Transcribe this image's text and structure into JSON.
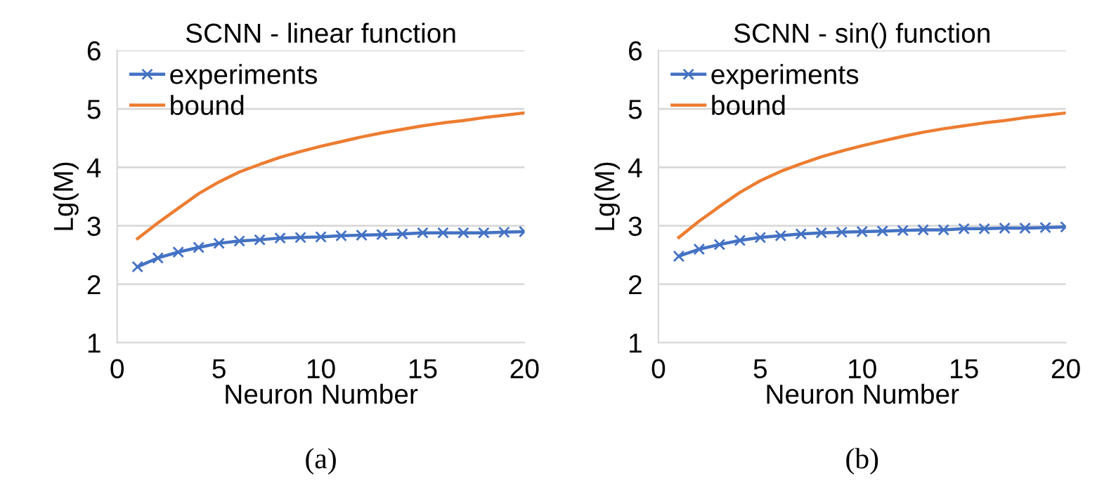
{
  "chart_data": [
    {
      "type": "line",
      "title": "SCNN - linear function",
      "xlabel": "Neuron Number",
      "ylabel": "Lg(M)",
      "annotations": [
        "(a)"
      ],
      "x": [
        1,
        2,
        3,
        4,
        5,
        6,
        7,
        8,
        9,
        10,
        11,
        12,
        13,
        14,
        15,
        16,
        17,
        18,
        19,
        20
      ],
      "xlim": [
        0,
        20
      ],
      "xticks": [
        0,
        5,
        10,
        15,
        20
      ],
      "ylim": [
        1,
        6
      ],
      "yticks": [
        1,
        2,
        3,
        4,
        5,
        6
      ],
      "grid": "y",
      "legend": "top left",
      "series": [
        {
          "name": "experiments",
          "color": "#4472c4",
          "marker": "cross",
          "values": [
            2.3,
            2.45,
            2.55,
            2.63,
            2.7,
            2.74,
            2.76,
            2.79,
            2.8,
            2.81,
            2.83,
            2.84,
            2.85,
            2.86,
            2.88,
            2.88,
            2.88,
            2.88,
            2.89,
            2.9
          ]
        },
        {
          "name": "bound",
          "color": "#ed7d31",
          "marker": "none",
          "values": [
            2.78,
            3.05,
            3.3,
            3.55,
            3.75,
            3.92,
            4.05,
            4.17,
            4.27,
            4.36,
            4.44,
            4.52,
            4.59,
            4.65,
            4.71,
            4.76,
            4.8,
            4.85,
            4.89,
            4.93
          ]
        }
      ]
    },
    {
      "type": "line",
      "title": "SCNN - sin() function",
      "xlabel": "Neuron Number",
      "ylabel": "Lg(M)",
      "annotations": [
        "(b)"
      ],
      "x": [
        1,
        2,
        3,
        4,
        5,
        6,
        7,
        8,
        9,
        10,
        11,
        12,
        13,
        14,
        15,
        16,
        17,
        18,
        19,
        20
      ],
      "xlim": [
        0,
        20
      ],
      "xticks": [
        0,
        5,
        10,
        15,
        20
      ],
      "ylim": [
        1,
        6
      ],
      "yticks": [
        1,
        2,
        3,
        4,
        5,
        6
      ],
      "grid": "y",
      "legend": "top left",
      "series": [
        {
          "name": "experiments",
          "color": "#4472c4",
          "marker": "cross",
          "values": [
            2.48,
            2.6,
            2.68,
            2.75,
            2.8,
            2.83,
            2.86,
            2.88,
            2.89,
            2.9,
            2.91,
            2.92,
            2.93,
            2.93,
            2.95,
            2.95,
            2.96,
            2.96,
            2.97,
            2.98
          ]
        },
        {
          "name": "bound",
          "color": "#ed7d31",
          "marker": "none",
          "values": [
            2.8,
            3.08,
            3.33,
            3.57,
            3.77,
            3.93,
            4.06,
            4.18,
            4.28,
            4.37,
            4.45,
            4.53,
            4.6,
            4.66,
            4.71,
            4.76,
            4.8,
            4.85,
            4.89,
            4.93
          ]
        }
      ]
    }
  ]
}
